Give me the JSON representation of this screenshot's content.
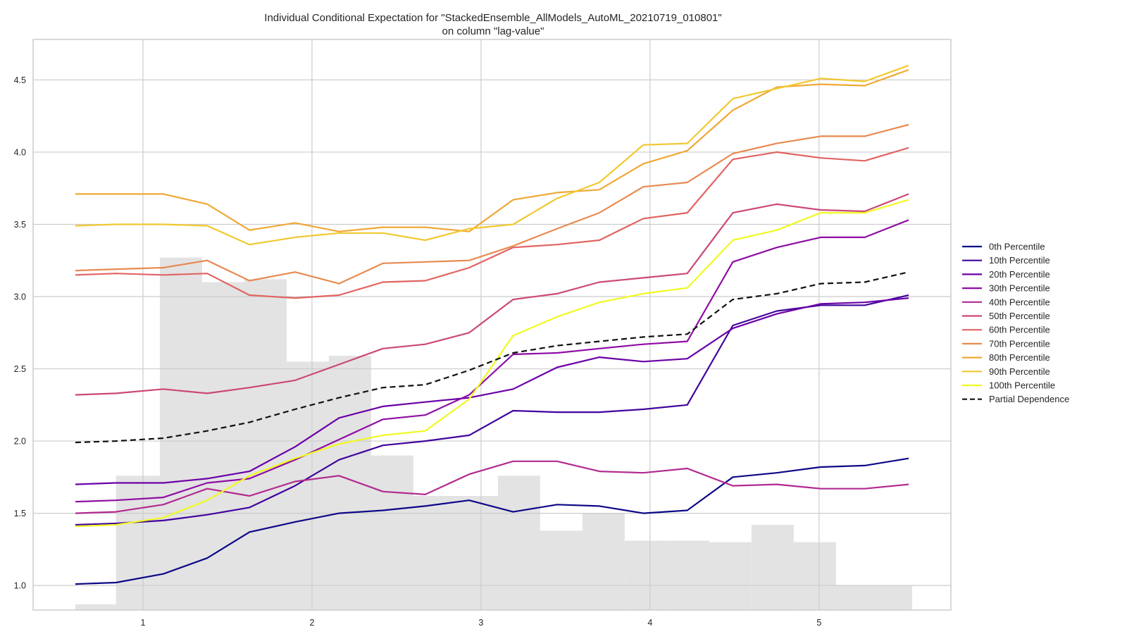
{
  "chart_data": {
    "type": "line",
    "title": "Individual Conditional Expectation for \"StackedEnsemble_AllModels_AutoML_20210719_010801\"",
    "subtitle": "on column \"lag-value\"",
    "xlabel": "",
    "ylabel": "",
    "xlim": [
      0.35,
      5.78
    ],
    "ylim": [
      0.83,
      4.78
    ],
    "x_ticks": [
      1,
      2,
      3,
      4,
      5
    ],
    "y_ticks": [
      1.0,
      1.5,
      2.0,
      2.5,
      3.0,
      3.5,
      4.0,
      4.5
    ],
    "x_tick_labels": [
      "1",
      "2",
      "3",
      "4",
      "5"
    ],
    "y_tick_labels": [
      "1.0",
      "1.5",
      "2.0",
      "2.5",
      "3.0",
      "3.5",
      "4.0",
      "4.5"
    ],
    "grid": true,
    "legend_position": "right",
    "x": [
      0.6,
      0.84,
      1.12,
      1.38,
      1.63,
      1.9,
      2.16,
      2.42,
      2.67,
      2.93,
      3.19,
      3.45,
      3.7,
      3.96,
      4.22,
      4.49,
      4.75,
      5.01,
      5.27,
      5.53
    ],
    "histogram": {
      "color": "#e3e3e3",
      "bins": [
        {
          "x0": 0.6,
          "x1": 0.84,
          "value": 0.87
        },
        {
          "x0": 0.84,
          "x1": 1.1,
          "value": 1.76
        },
        {
          "x0": 1.1,
          "x1": 1.35,
          "value": 3.27
        },
        {
          "x0": 1.35,
          "x1": 1.6,
          "value": 3.1
        },
        {
          "x0": 1.6,
          "x1": 1.85,
          "value": 3.12
        },
        {
          "x0": 1.85,
          "x1": 2.1,
          "value": 2.55
        },
        {
          "x0": 2.1,
          "x1": 2.35,
          "value": 2.59
        },
        {
          "x0": 2.35,
          "x1": 2.6,
          "value": 1.9
        },
        {
          "x0": 2.6,
          "x1": 2.85,
          "value": 1.62
        },
        {
          "x0": 2.85,
          "x1": 3.1,
          "value": 1.62
        },
        {
          "x0": 3.1,
          "x1": 3.35,
          "value": 1.76
        },
        {
          "x0": 3.35,
          "x1": 3.6,
          "value": 1.38
        },
        {
          "x0": 3.6,
          "x1": 3.85,
          "value": 1.5
        },
        {
          "x0": 3.85,
          "x1": 4.1,
          "value": 1.31
        },
        {
          "x0": 4.1,
          "x1": 4.35,
          "value": 1.31
        },
        {
          "x0": 4.35,
          "x1": 4.6,
          "value": 1.3
        },
        {
          "x0": 4.6,
          "x1": 4.85,
          "value": 1.42
        },
        {
          "x0": 4.85,
          "x1": 5.1,
          "value": 1.3
        },
        {
          "x0": 5.1,
          "x1": 5.35,
          "value": 1.0
        },
        {
          "x0": 5.35,
          "x1": 5.55,
          "value": 1.0
        }
      ]
    },
    "series": [
      {
        "name": "0th Percentile",
        "color": "#0d0887",
        "dash": false,
        "values": [
          1.01,
          1.02,
          1.08,
          1.19,
          1.37,
          1.44,
          1.5,
          1.52,
          1.55,
          1.59,
          1.51,
          1.56,
          1.55,
          1.5,
          1.52,
          1.75,
          1.78,
          1.82,
          1.83,
          1.88
        ]
      },
      {
        "name": "10th Percentile",
        "color": "#41049d",
        "dash": false,
        "values": [
          1.42,
          1.43,
          1.45,
          1.49,
          1.54,
          1.69,
          1.87,
          1.97,
          2.0,
          2.04,
          2.21,
          2.2,
          2.2,
          2.22,
          2.25,
          2.8,
          2.9,
          2.94,
          2.94,
          3.01
        ]
      },
      {
        "name": "20th Percentile",
        "color": "#6a00a8",
        "dash": false,
        "values": [
          1.7,
          1.71,
          1.71,
          1.74,
          1.79,
          1.96,
          2.16,
          2.24,
          2.27,
          2.3,
          2.36,
          2.51,
          2.58,
          2.55,
          2.57,
          2.78,
          2.88,
          2.95,
          2.96,
          2.99
        ]
      },
      {
        "name": "30th Percentile",
        "color": "#8f0da4",
        "dash": false,
        "values": [
          1.58,
          1.59,
          1.61,
          1.71,
          1.74,
          1.87,
          2.01,
          2.15,
          2.18,
          2.32,
          2.6,
          2.61,
          2.64,
          2.67,
          2.69,
          3.24,
          3.34,
          3.41,
          3.41,
          3.53
        ]
      },
      {
        "name": "40th Percentile",
        "color": "#b12a90",
        "dash": false,
        "values": [
          1.5,
          1.51,
          1.56,
          1.67,
          1.62,
          1.72,
          1.76,
          1.65,
          1.63,
          1.77,
          1.86,
          1.86,
          1.79,
          1.78,
          1.81,
          1.69,
          1.7,
          1.67,
          1.67,
          1.7
        ]
      },
      {
        "name": "50th Percentile",
        "color": "#cc4778",
        "dash": false,
        "values": [
          2.32,
          2.33,
          2.36,
          2.33,
          2.37,
          2.42,
          2.53,
          2.64,
          2.67,
          2.75,
          2.98,
          3.02,
          3.1,
          3.13,
          3.16,
          3.58,
          3.64,
          3.6,
          3.59,
          3.71
        ]
      },
      {
        "name": "60th Percentile",
        "color": "#e16462",
        "dash": false,
        "values": [
          3.15,
          3.16,
          3.15,
          3.16,
          3.01,
          2.99,
          3.01,
          3.1,
          3.11,
          3.2,
          3.34,
          3.36,
          3.39,
          3.54,
          3.58,
          3.95,
          4.0,
          3.96,
          3.94,
          4.03
        ]
      },
      {
        "name": "70th Percentile",
        "color": "#e88a51",
        "dash": false,
        "values": [
          3.18,
          3.19,
          3.2,
          3.25,
          3.11,
          3.17,
          3.09,
          3.23,
          3.24,
          3.25,
          3.35,
          3.47,
          3.58,
          3.76,
          3.79,
          3.99,
          4.06,
          4.11,
          4.11,
          4.19
        ]
      },
      {
        "name": "80th Percentile",
        "color": "#f0a835",
        "dash": false,
        "values": [
          3.71,
          3.71,
          3.71,
          3.64,
          3.46,
          3.51,
          3.45,
          3.48,
          3.48,
          3.45,
          3.67,
          3.72,
          3.74,
          3.92,
          4.01,
          4.29,
          4.45,
          4.47,
          4.46,
          4.57
        ]
      },
      {
        "name": "90th Percentile",
        "color": "#f2c830",
        "dash": false,
        "values": [
          3.49,
          3.5,
          3.5,
          3.49,
          3.36,
          3.41,
          3.44,
          3.44,
          3.39,
          3.47,
          3.5,
          3.68,
          3.79,
          4.05,
          4.06,
          4.37,
          4.44,
          4.51,
          4.49,
          4.6
        ]
      },
      {
        "name": "100th Percentile",
        "color": "#f0f921",
        "dash": false,
        "values": [
          1.41,
          1.42,
          1.47,
          1.59,
          1.76,
          1.88,
          1.98,
          2.04,
          2.07,
          2.29,
          2.73,
          2.86,
          2.96,
          3.02,
          3.06,
          3.39,
          3.46,
          3.58,
          3.58,
          3.67
        ]
      },
      {
        "name": "Partial Dependence",
        "color": "#111111",
        "dash": true,
        "values": [
          1.99,
          2.0,
          2.02,
          2.07,
          2.13,
          2.22,
          2.3,
          2.37,
          2.39,
          2.49,
          2.61,
          2.66,
          2.69,
          2.72,
          2.74,
          2.98,
          3.02,
          3.09,
          3.1,
          3.17
        ]
      }
    ]
  }
}
